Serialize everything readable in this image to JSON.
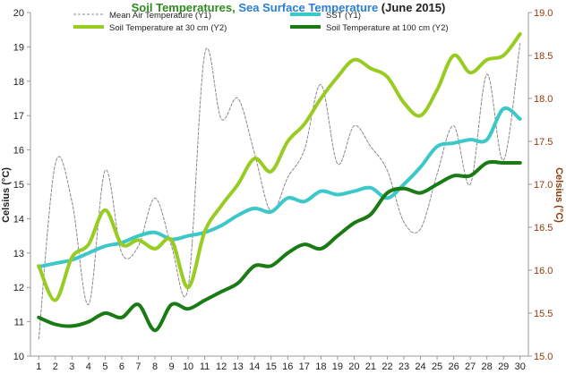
{
  "chart_data": {
    "type": "line",
    "title": {
      "part1": "Soil Temperatures",
      "sep": ", ",
      "part2": "Sea Surface Temperature",
      "part3": " (June 2015)"
    },
    "ylabel_left": "Celsius (°C)",
    "ylabel_right": "Celsius (°C)",
    "x": [
      1,
      2,
      3,
      4,
      5,
      6,
      7,
      8,
      9,
      10,
      11,
      12,
      13,
      14,
      15,
      16,
      17,
      18,
      19,
      20,
      21,
      22,
      23,
      24,
      25,
      26,
      27,
      28,
      29,
      30
    ],
    "y1_range": [
      10,
      20
    ],
    "y1_ticks": [
      "10",
      "11",
      "12",
      "13",
      "14",
      "15",
      "16",
      "17",
      "18",
      "19",
      "20"
    ],
    "y2_range": [
      15.0,
      19.0
    ],
    "y2_ticks": [
      "15.0",
      "15.5",
      "16.0",
      "16.5",
      "17.0",
      "17.5",
      "18.0",
      "18.5",
      "19.0"
    ],
    "grid": false,
    "legend_position": "top",
    "series": [
      {
        "name": "Mean Air Temperature (Y1)",
        "axis": "y1",
        "color": "#888888",
        "style": "dashed",
        "values": [
          10.5,
          15.6,
          14.5,
          11.5,
          15.4,
          13.0,
          13.2,
          14.6,
          13.2,
          12.0,
          18.8,
          16.9,
          17.5,
          15.9,
          14.2,
          15.2,
          16.0,
          17.9,
          15.6,
          16.7,
          16.1,
          15.4,
          13.9,
          13.7,
          15.3,
          16.7,
          15.0,
          18.2,
          15.7,
          19.1
        ]
      },
      {
        "name": "SST (Y1)",
        "axis": "y1",
        "color": "#3cc8c8",
        "style": "solid",
        "values": [
          12.6,
          12.7,
          12.8,
          13.0,
          13.2,
          13.3,
          13.5,
          13.6,
          13.4,
          13.5,
          13.6,
          13.8,
          14.1,
          14.3,
          14.2,
          14.6,
          14.5,
          14.8,
          14.7,
          14.8,
          14.9,
          14.6,
          15.0,
          15.5,
          16.1,
          16.2,
          16.3,
          16.3,
          17.2,
          16.9
        ]
      },
      {
        "name": "Soil Temperature at 30 cm (Y2)",
        "axis": "y2",
        "color": "#99cc22",
        "style": "solid",
        "values": [
          16.05,
          15.65,
          16.15,
          16.3,
          16.7,
          16.3,
          16.35,
          16.25,
          16.35,
          15.8,
          16.45,
          16.75,
          17.0,
          17.3,
          17.15,
          17.5,
          17.7,
          18.0,
          18.25,
          18.45,
          18.35,
          18.25,
          17.95,
          17.8,
          18.1,
          18.5,
          18.3,
          18.45,
          18.5,
          18.75
        ]
      },
      {
        "name": "Soil Temperature at 100 cm (Y2)",
        "axis": "y2",
        "color": "#1a7a14",
        "style": "solid",
        "values": [
          15.45,
          15.37,
          15.35,
          15.4,
          15.5,
          15.45,
          15.6,
          15.3,
          15.6,
          15.55,
          15.65,
          15.75,
          15.85,
          16.05,
          16.05,
          16.2,
          16.3,
          16.25,
          16.4,
          16.55,
          16.65,
          16.9,
          16.95,
          16.9,
          17.0,
          17.1,
          17.1,
          17.25,
          17.25,
          17.25
        ]
      }
    ]
  },
  "colors": {
    "title_green": "#2d8a1e",
    "title_blue": "#2a7fd4",
    "title_black": "#222222",
    "right_axis": "#8b3a0a",
    "axis": "#999999"
  }
}
